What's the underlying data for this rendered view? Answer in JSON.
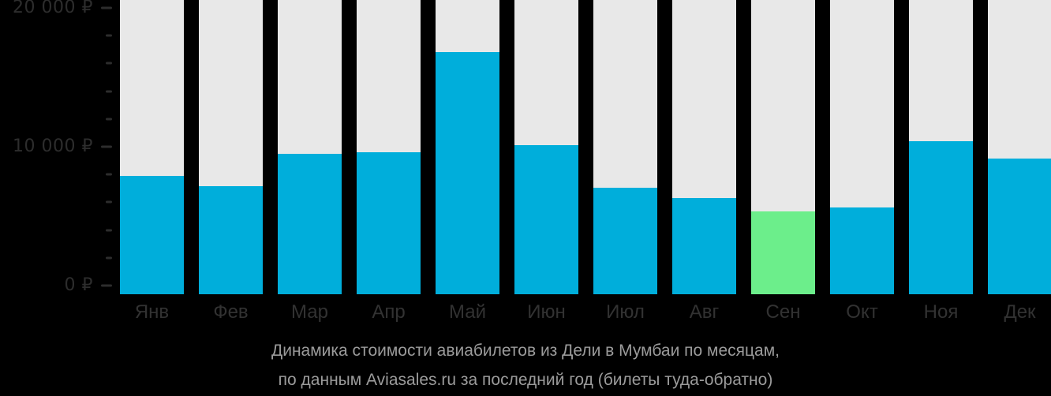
{
  "chart_data": {
    "type": "bar",
    "categories": [
      "Янв",
      "Фев",
      "Мар",
      "Апр",
      "Май",
      "Июн",
      "Июл",
      "Авг",
      "Сен",
      "Окт",
      "Ноя",
      "Дек"
    ],
    "values": [
      8000,
      7300,
      9500,
      9600,
      16400,
      10100,
      7200,
      6500,
      5600,
      5900,
      10400,
      9200
    ],
    "highlight_index": 8,
    "highlight_month": "Сен",
    "title": "",
    "xlabel": "",
    "ylabel": "",
    "ylim": [
      0,
      20000
    ],
    "yticks": [
      {
        "value": 0,
        "label": "0 ₽"
      },
      {
        "value": 10000,
        "label": "10 000 ₽"
      },
      {
        "value": 20000,
        "label": "20 000 ₽"
      }
    ],
    "minor_tick_step": 2000,
    "grid": false,
    "legend_position": "none",
    "colors": {
      "bar": "#00AEDB",
      "highlight": "#6CEE8B",
      "track": "#E8E8E8",
      "background": "#000000",
      "axis_text": "#2D2D2D",
      "month_text": "#323232",
      "caption_text": "#9B9B9B"
    }
  },
  "caption": {
    "line1": "Динамика стоимости авиабилетов из Дели в Мумбаи по месяцам,",
    "line2": "по данным Aviasales.ru за последний год (билеты туда-обратно)"
  }
}
